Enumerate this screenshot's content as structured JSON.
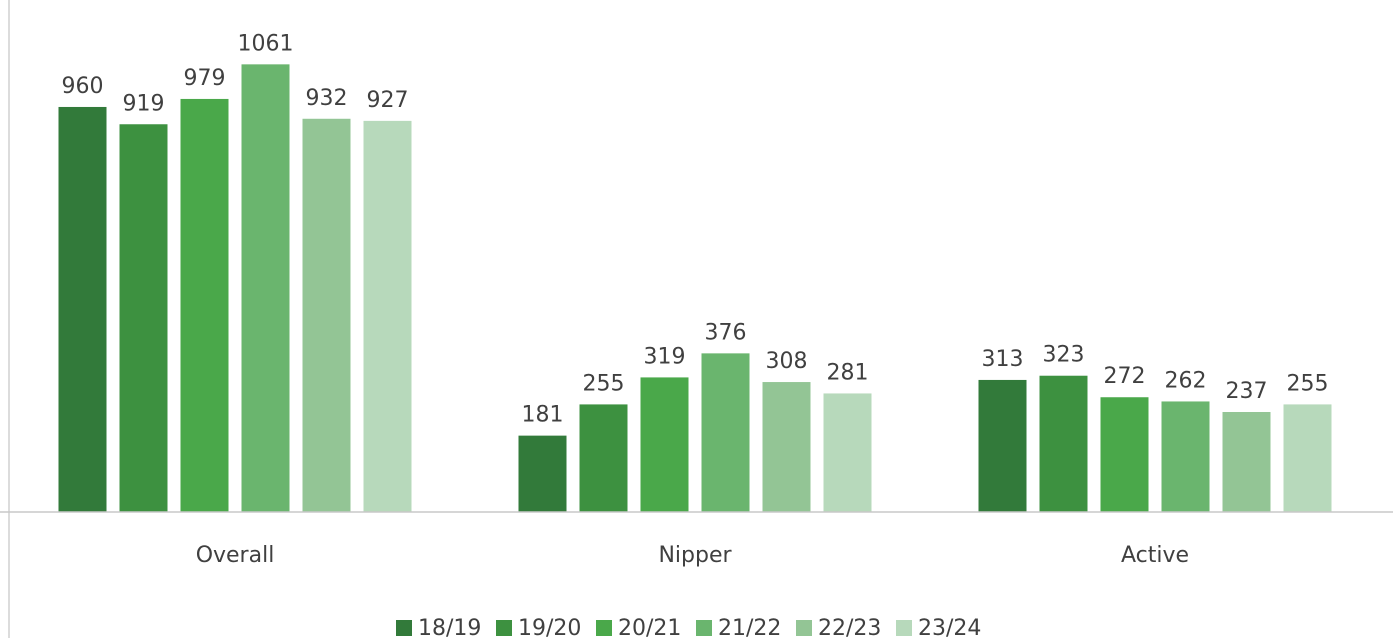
{
  "chart_data": {
    "type": "bar",
    "categories": [
      "Overall",
      "Nipper",
      "Active"
    ],
    "series": [
      {
        "name": "18/19",
        "color": "#327a3a",
        "values": [
          960,
          181,
          313
        ]
      },
      {
        "name": "19/20",
        "color": "#3d9140",
        "values": [
          919,
          255,
          323
        ]
      },
      {
        "name": "20/21",
        "color": "#4aa84a",
        "values": [
          979,
          319,
          272
        ]
      },
      {
        "name": "21/22",
        "color": "#6ab56e",
        "values": [
          1061,
          376,
          262
        ]
      },
      {
        "name": "22/23",
        "color": "#93c595",
        "values": [
          932,
          308,
          237
        ]
      },
      {
        "name": "23/24",
        "color": "#b7d9bb",
        "values": [
          927,
          281,
          255
        ]
      }
    ],
    "ylim": [
      0,
      1200
    ],
    "legend": "bottom"
  }
}
